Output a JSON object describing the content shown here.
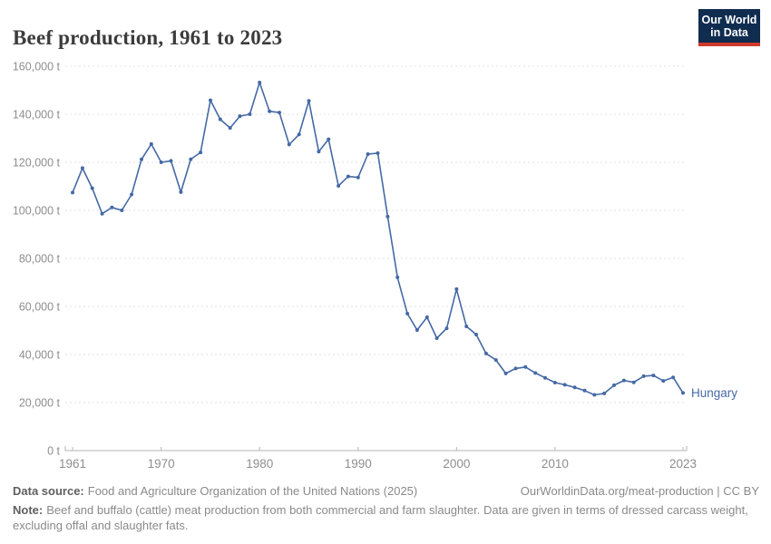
{
  "header": {
    "title": "Beef production, 1961 to 2023",
    "logo": {
      "line1": "Our World",
      "line2": "in Data"
    }
  },
  "chart_data": {
    "type": "line",
    "title": "Beef production, 1961 to 2023",
    "entity_label": "Hungary",
    "unit": "t",
    "grid": "horizontal-dashed",
    "legend_position": "end-of-line",
    "xlim": [
      1961,
      2023
    ],
    "ylim": [
      0,
      160000
    ],
    "x": [
      1961,
      1962,
      1963,
      1964,
      1965,
      1966,
      1967,
      1968,
      1969,
      1970,
      1971,
      1972,
      1973,
      1974,
      1975,
      1976,
      1977,
      1978,
      1979,
      1980,
      1981,
      1982,
      1983,
      1984,
      1985,
      1986,
      1987,
      1988,
      1989,
      1990,
      1991,
      1992,
      1993,
      1994,
      1995,
      1996,
      1997,
      1998,
      1999,
      2000,
      2001,
      2002,
      2003,
      2004,
      2005,
      2006,
      2007,
      2008,
      2009,
      2010,
      2011,
      2012,
      2013,
      2014,
      2015,
      2016,
      2017,
      2018,
      2019,
      2020,
      2021,
      2022,
      2023
    ],
    "series": [
      {
        "name": "Hungary",
        "values": [
          107400,
          117600,
          109200,
          98600,
          101200,
          100000,
          106600,
          121200,
          127600,
          120000,
          120600,
          107600,
          121300,
          124100,
          145800,
          137900,
          134300,
          139200,
          140000,
          153200,
          141200,
          140700,
          127400,
          131600,
          145600,
          124400,
          129600,
          110200,
          114100,
          113700,
          123400,
          123800,
          97400,
          72100,
          57000,
          50200,
          55500,
          46800,
          50900,
          67200,
          51700,
          48300,
          40400,
          37700,
          32100,
          34200,
          34800,
          32300,
          30300,
          28300,
          27400,
          26300,
          25000,
          23200,
          23800,
          27200,
          29200,
          28400,
          31000,
          31300,
          29000,
          30500,
          24000
        ]
      }
    ],
    "yticks": [
      {
        "value": 0,
        "label": "0 t"
      },
      {
        "value": 20000,
        "label": "20,000 t"
      },
      {
        "value": 40000,
        "label": "40,000 t"
      },
      {
        "value": 60000,
        "label": "60,000 t"
      },
      {
        "value": 80000,
        "label": "80,000 t"
      },
      {
        "value": 100000,
        "label": "100,000 t"
      },
      {
        "value": 120000,
        "label": "120,000 t"
      },
      {
        "value": 140000,
        "label": "140,000 t"
      },
      {
        "value": 160000,
        "label": "160,000 t"
      }
    ],
    "xticks": [
      {
        "value": 1961,
        "label": "1961"
      },
      {
        "value": 1970,
        "label": "1970"
      },
      {
        "value": 1980,
        "label": "1980"
      },
      {
        "value": 1990,
        "label": "1990"
      },
      {
        "value": 2000,
        "label": "2000"
      },
      {
        "value": 2010,
        "label": "2010"
      },
      {
        "value": 2023,
        "label": "2023"
      }
    ],
    "colors": {
      "line": "#4569a5",
      "grid": "#e2e2e2",
      "axis": "#b5b5b5",
      "tick_text": "#8e8e8e"
    }
  },
  "footer": {
    "source_label": "Data source:",
    "source_text": "Food and Agriculture Organization of the United Nations (2025)",
    "link_text": "OurWorldinData.org/meat-production | CC BY",
    "note_label": "Note:",
    "note_text": "Beef and buffalo (cattle) meat production from both commercial and farm slaughter. Data are given in terms of dressed carcass weight, excluding offal and slaughter fats."
  }
}
